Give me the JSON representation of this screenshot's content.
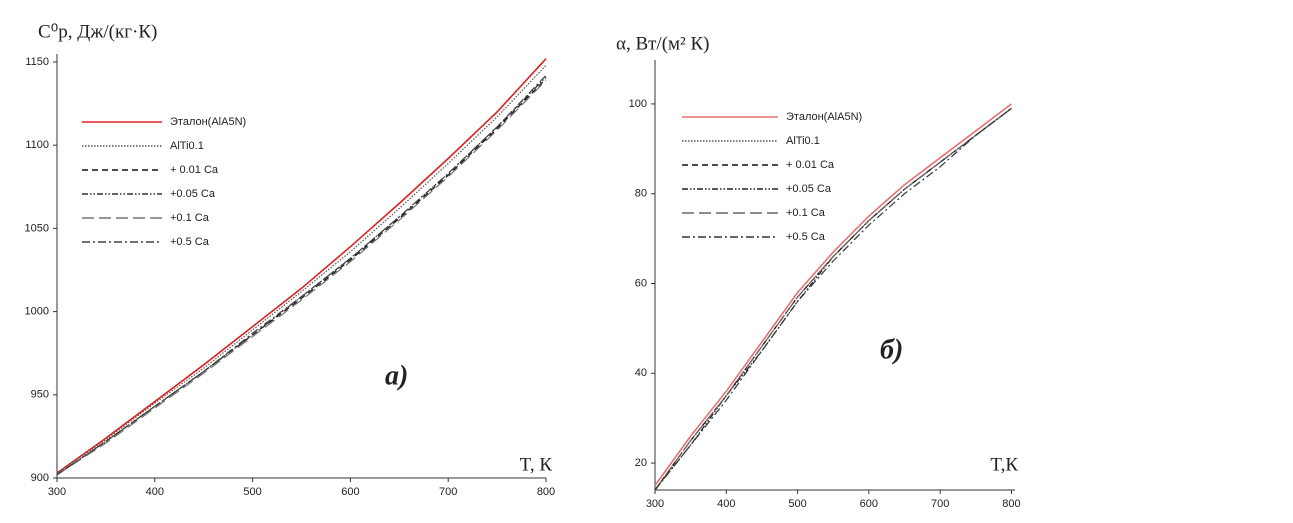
{
  "chart_data": [
    {
      "type": "line",
      "y_label": "C⁰p, Дж/(кг·К)",
      "x_label": "T, К",
      "annotation": "а)",
      "x": [
        300,
        350,
        400,
        450,
        500,
        550,
        600,
        650,
        700,
        750,
        800
      ],
      "xlim": [
        300,
        800
      ],
      "xticks": [
        300,
        400,
        500,
        600,
        700,
        800
      ],
      "ylim": [
        900,
        1150
      ],
      "yticks": [
        900,
        950,
        1000,
        1050,
        1100,
        1150
      ],
      "series": [
        {
          "name": "Эталон(AlA5N)",
          "color": "#e02020",
          "style": "solid",
          "values": [
            903,
            924,
            946,
            968,
            991,
            1014,
            1039,
            1065,
            1092,
            1120,
            1152
          ]
        },
        {
          "name": "AlTi0.1",
          "color": "#555555",
          "style": "dotted",
          "values": [
            903,
            923,
            945,
            966,
            989,
            1012,
            1036,
            1062,
            1089,
            1117,
            1148
          ]
        },
        {
          "name": "+ 0.01 Ca",
          "color": "#111111",
          "style": "dashed",
          "values": [
            902,
            922,
            943,
            964,
            986,
            1008,
            1031,
            1056,
            1082,
            1110,
            1140
          ]
        },
        {
          "name": "+0.05 Ca",
          "color": "#333333",
          "style": "dashdotdot",
          "values": [
            902,
            922,
            943,
            964,
            986,
            1009,
            1032,
            1057,
            1083,
            1111,
            1141
          ]
        },
        {
          "name": "+0.1 Ca",
          "color": "#777777",
          "style": "longdash",
          "values": [
            902,
            921,
            942,
            963,
            985,
            1007,
            1030,
            1055,
            1081,
            1109,
            1139
          ]
        },
        {
          "name": "+0.5 Ca",
          "color": "#444444",
          "style": "dashdot",
          "values": [
            902,
            922,
            943,
            964,
            987,
            1009,
            1032,
            1057,
            1083,
            1111,
            1142
          ]
        }
      ]
    },
    {
      "type": "line",
      "y_label": "α, Вт/(м² К)",
      "x_label": "T,К",
      "annotation": "б)",
      "x": [
        300,
        350,
        400,
        450,
        500,
        550,
        600,
        650,
        700,
        750,
        800
      ],
      "xlim": [
        300,
        805
      ],
      "xticks": [
        300,
        400,
        500,
        600,
        700,
        800
      ],
      "ylim": [
        14,
        108
      ],
      "yticks": [
        20,
        40,
        60,
        80,
        100
      ],
      "series": [
        {
          "name": "Эталон(AlA5N)",
          "color": "#e87070",
          "style": "solid",
          "values": [
            15,
            26,
            36,
            47,
            58,
            67,
            75,
            82,
            88,
            94,
            100
          ]
        },
        {
          "name": "AlTi0.1",
          "color": "#555555",
          "style": "dotted",
          "values": [
            14,
            25,
            35,
            46,
            57,
            66,
            74,
            81,
            87,
            93,
            99
          ]
        },
        {
          "name": "+ 0.01 Ca",
          "color": "#111111",
          "style": "dashed",
          "values": [
            14,
            25,
            35,
            46,
            57,
            66,
            74,
            81,
            87,
            93,
            99
          ]
        },
        {
          "name": "+0.05 Ca",
          "color": "#222222",
          "style": "dashdotdot",
          "values": [
            14,
            24,
            35,
            45,
            56,
            66,
            74,
            81,
            87,
            93,
            99
          ]
        },
        {
          "name": "+0.1 Ca",
          "color": "#666666",
          "style": "longdash",
          "values": [
            14,
            25,
            35,
            46,
            57,
            66,
            74,
            81,
            87,
            93,
            99
          ]
        },
        {
          "name": "+0.5 Ca",
          "color": "#333333",
          "style": "dashdot",
          "values": [
            14,
            24,
            34,
            45,
            56,
            65,
            73,
            80,
            86,
            93,
            99
          ]
        }
      ]
    }
  ]
}
